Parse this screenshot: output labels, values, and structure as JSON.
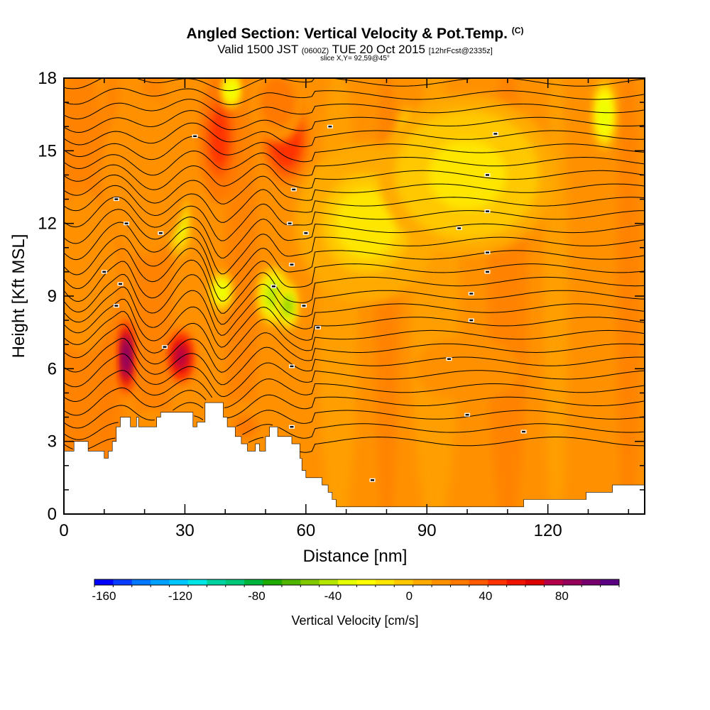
{
  "header": {
    "title": "Angled Section: Vertical Velocity & Pot.Temp.",
    "title_tag": "(C)",
    "valid_prefix": "Valid 1500 JST",
    "valid_utc": "(0600Z)",
    "valid_date": "TUE 20 Oct 2015",
    "forecast_tag": "[12hrFcst@2335z]",
    "slice": "slice X,Y= 92,59@45°"
  },
  "chart_data": {
    "type": "heatmap",
    "xlabel": "Distance [nm]",
    "ylabel": "Height [Kft MSL]",
    "xlim": [
      0,
      144
    ],
    "ylim": [
      0,
      18
    ],
    "x_ticks": [
      0,
      30,
      60,
      90,
      120
    ],
    "x_tick_labels": [
      "0",
      "30",
      "60",
      "90",
      "120"
    ],
    "y_ticks": [
      0,
      3,
      6,
      9,
      12,
      15,
      18
    ],
    "y_tick_labels": [
      "0",
      "3",
      "6",
      "9",
      "12",
      "15",
      "18"
    ],
    "background_value_cm_s": 15,
    "colorbar": {
      "label": "Vertical Velocity [cm/s]",
      "range": [
        -165,
        110
      ],
      "tick_values": [
        -160,
        -120,
        -80,
        -40,
        0,
        40,
        80
      ],
      "tick_labels": [
        "-160",
        "-120",
        "-80",
        "-40",
        "0",
        "40",
        "80"
      ],
      "colors": [
        "#0000ff",
        "#0a3cff",
        "#0078ff",
        "#00a0ff",
        "#00c8ff",
        "#00e6e6",
        "#00d2a0",
        "#00c878",
        "#00b43c",
        "#1eaa00",
        "#50b400",
        "#82c800",
        "#b4e600",
        "#e6ff00",
        "#ffff00",
        "#ffe600",
        "#ffc800",
        "#ffaa00",
        "#ff9100",
        "#ff7800",
        "#ff5a00",
        "#ff3200",
        "#f01400",
        "#dc0000",
        "#b4004a",
        "#96005a",
        "#78006e",
        "#5a0082"
      ]
    },
    "features": [
      {
        "x": 15.5,
        "y": 6.5,
        "value": 100,
        "sx": 0.9,
        "sy": 1.5
      },
      {
        "x": 29,
        "y": 6.5,
        "value": 72,
        "sx": 1.6,
        "sy": 1.1
      },
      {
        "x": 38.5,
        "y": 15.5,
        "value": 45,
        "sx": 2.2,
        "sy": 2.4
      },
      {
        "x": 55,
        "y": 15.5,
        "value": 50,
        "sx": 2.6,
        "sy": 1.7
      },
      {
        "x": 53,
        "y": 17,
        "value": 28,
        "sx": 3,
        "sy": 1.5
      },
      {
        "x": 52,
        "y": 9,
        "value": -42,
        "sx": 1.8,
        "sy": 1.1
      },
      {
        "x": 55.5,
        "y": 8.6,
        "value": -48,
        "sx": 1.1,
        "sy": 0.9
      },
      {
        "x": 39,
        "y": 9.2,
        "value": -30,
        "sx": 1.3,
        "sy": 0.8
      },
      {
        "x": 28.5,
        "y": 12,
        "value": -28,
        "sx": 1.3,
        "sy": 1.3
      },
      {
        "x": 41.5,
        "y": 17.5,
        "value": -32,
        "sx": 1.1,
        "sy": 0.7
      },
      {
        "x": 134,
        "y": 16.5,
        "value": -35,
        "sx": 1.3,
        "sy": 1.4
      },
      {
        "x": 85,
        "y": 15.5,
        "value": -20,
        "sx": 0.9,
        "sy": 1.3
      },
      {
        "x": 75,
        "y": 12,
        "value": -10,
        "sx": 8,
        "sy": 3
      },
      {
        "x": 100,
        "y": 14,
        "value": -12,
        "sx": 10,
        "sy": 3
      },
      {
        "x": 20,
        "y": 14,
        "value": 15,
        "sx": 5,
        "sy": 3
      },
      {
        "x": 5,
        "y": 10,
        "value": 15,
        "sx": 4,
        "sy": 3
      },
      {
        "x": 22,
        "y": 3.6,
        "value": 20,
        "sx": 3,
        "sy": 0.6
      },
      {
        "x": 100,
        "y": 6,
        "value": 13,
        "sx": 6,
        "sy": 1.2
      },
      {
        "x": 45,
        "y": 3.6,
        "value": 22,
        "sx": 3,
        "sy": 1
      }
    ],
    "potential_temperature_label_positions": [
      [
        13,
        13.0
      ],
      [
        15.5,
        12.0
      ],
      [
        24,
        11.6
      ],
      [
        10,
        10.0
      ],
      [
        14,
        9.5
      ],
      [
        13,
        8.6
      ],
      [
        25,
        6.9
      ],
      [
        32.5,
        15.6
      ],
      [
        57,
        13.4
      ],
      [
        56,
        12.0
      ],
      [
        60,
        11.6
      ],
      [
        56.5,
        10.3
      ],
      [
        52,
        9.4
      ],
      [
        59.5,
        8.6
      ],
      [
        63,
        7.7
      ],
      [
        56.5,
        6.1
      ],
      [
        56.5,
        3.6
      ],
      [
        66,
        16.0
      ],
      [
        107,
        15.7
      ],
      [
        98,
        11.8
      ],
      [
        105,
        14.0
      ],
      [
        105,
        12.5
      ],
      [
        105,
        10.8
      ],
      [
        105,
        10.0
      ],
      [
        101,
        9.1
      ],
      [
        101,
        8.0
      ],
      [
        95.5,
        6.4
      ],
      [
        100,
        4.1
      ],
      [
        114,
        3.4
      ],
      [
        76.5,
        1.4
      ]
    ],
    "terrain_profile": [
      [
        0,
        2.6
      ],
      [
        2.5,
        2.6
      ],
      [
        2.5,
        3.0
      ],
      [
        6,
        3.0
      ],
      [
        6,
        2.6
      ],
      [
        9.5,
        2.6
      ],
      [
        9.5,
        2.6
      ],
      [
        10,
        2.6
      ],
      [
        10,
        2.3
      ],
      [
        11,
        2.3
      ],
      [
        11,
        2.6
      ],
      [
        12,
        2.6
      ],
      [
        12,
        3.0
      ],
      [
        13,
        3.0
      ],
      [
        13,
        3.6
      ],
      [
        14,
        3.6
      ],
      [
        14,
        4.0
      ],
      [
        16.5,
        4.0
      ],
      [
        16.5,
        3.6
      ],
      [
        18,
        3.6
      ],
      [
        18,
        4.0
      ],
      [
        18.5,
        4.0
      ],
      [
        18.5,
        3.6
      ],
      [
        23,
        3.6
      ],
      [
        23,
        4.0
      ],
      [
        24,
        4.0
      ],
      [
        24,
        4.2
      ],
      [
        32,
        4.2
      ],
      [
        32,
        3.6
      ],
      [
        33,
        3.6
      ],
      [
        33,
        3.8
      ],
      [
        35,
        3.8
      ],
      [
        35,
        4.6
      ],
      [
        39.5,
        4.6
      ],
      [
        39.5,
        4.0
      ],
      [
        40.5,
        4.0
      ],
      [
        40.5,
        3.6
      ],
      [
        42.5,
        3.6
      ],
      [
        42.5,
        3.2
      ],
      [
        44,
        3.2
      ],
      [
        44,
        2.9
      ],
      [
        45.5,
        2.9
      ],
      [
        45.5,
        2.6
      ],
      [
        47.5,
        2.6
      ],
      [
        47.5,
        2.9
      ],
      [
        48.5,
        2.9
      ],
      [
        48.5,
        2.6
      ],
      [
        50,
        2.6
      ],
      [
        50,
        3.2
      ],
      [
        51,
        3.2
      ],
      [
        51,
        3.6
      ],
      [
        53,
        3.6
      ],
      [
        53,
        3.2
      ],
      [
        56.5,
        3.2
      ],
      [
        56.5,
        2.9
      ],
      [
        58.5,
        2.9
      ],
      [
        58.5,
        2.3
      ],
      [
        59,
        2.3
      ],
      [
        59,
        1.8
      ],
      [
        60,
        1.8
      ],
      [
        60,
        1.5
      ],
      [
        64,
        1.5
      ],
      [
        64,
        1.2
      ],
      [
        65.5,
        1.2
      ],
      [
        65.5,
        0.9
      ],
      [
        66.5,
        0.9
      ],
      [
        66.5,
        0.6
      ],
      [
        67.5,
        0.6
      ],
      [
        67.5,
        0.3
      ],
      [
        114,
        0.3
      ],
      [
        114,
        0.6
      ],
      [
        129.5,
        0.6
      ],
      [
        129.5,
        0.9
      ],
      [
        136,
        0.9
      ],
      [
        136,
        1.2
      ],
      [
        144,
        1.2
      ]
    ]
  }
}
